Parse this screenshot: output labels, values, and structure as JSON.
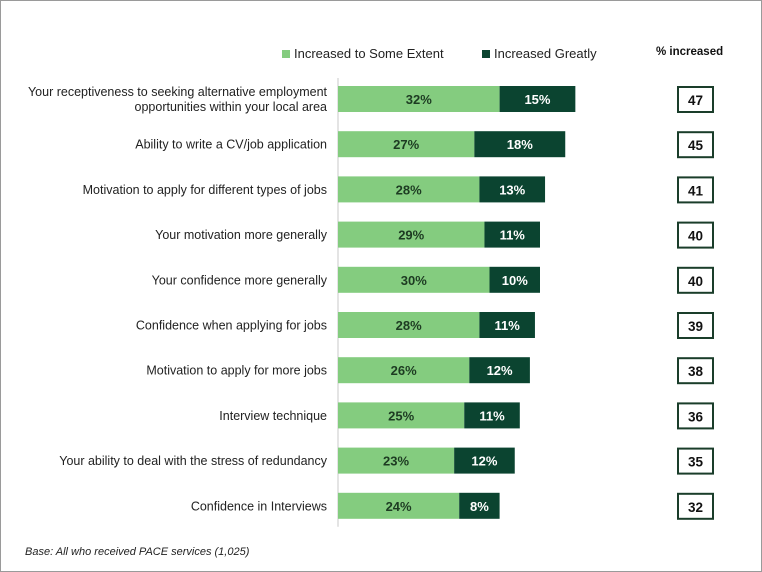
{
  "chart_data": {
    "type": "bar",
    "stacked": true,
    "orientation": "horizontal",
    "categories": [
      "Your receptiveness to seeking alternative employment opportunities within your local area",
      "Ability to write a CV/job application",
      "Motivation to apply for different types of jobs",
      "Your motivation more generally",
      "Your confidence more generally",
      "Confidence when applying for jobs",
      "Motivation to apply for more jobs",
      "Interview technique",
      "Your ability to deal with the stress of redundancy",
      "Confidence in Interviews"
    ],
    "series": [
      {
        "name": "Increased to Some Extent",
        "color": "#84cc7f",
        "values": [
          32,
          27,
          28,
          29,
          30,
          28,
          26,
          25,
          23,
          24
        ]
      },
      {
        "name": "Increased Greatly",
        "color": "#0b4430",
        "values": [
          15,
          18,
          13,
          11,
          10,
          11,
          12,
          11,
          12,
          8
        ]
      }
    ],
    "data_labels": [
      [
        "32%",
        "27%",
        "28%",
        "29%",
        "30%",
        "28%",
        "26%",
        "25%",
        "23%",
        "24%"
      ],
      [
        "15%",
        "18%",
        "13%",
        "11%",
        "10%",
        "11%",
        "12%",
        "11%",
        "12%",
        "8%"
      ]
    ],
    "totals_header": "% increased",
    "totals": [
      "47",
      "45",
      "41",
      "40",
      "40",
      "39",
      "38",
      "36",
      "35",
      "32"
    ],
    "xlim": [
      0,
      100
    ],
    "grid": false,
    "legend_position": "top"
  },
  "footnote": "Base: All who received PACE services (1,025)"
}
